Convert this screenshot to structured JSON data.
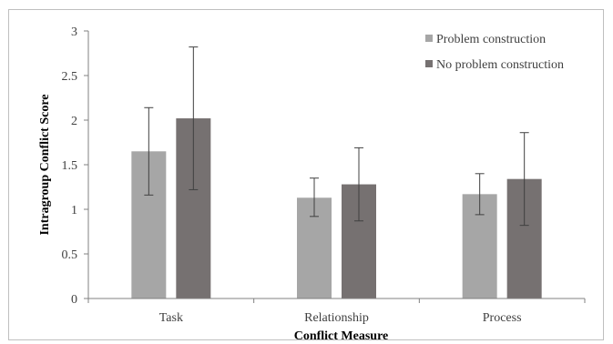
{
  "chart_data": {
    "type": "bar",
    "title": "",
    "xlabel": "Conflict Measure",
    "ylabel": "Intragroup Conflict Score",
    "ylim": [
      0,
      3
    ],
    "yticks": [
      "0",
      "0.5",
      "1",
      "1.5",
      "2",
      "2.5",
      "3"
    ],
    "ytick_values": [
      0,
      0.5,
      1,
      1.5,
      2,
      2.5,
      3
    ],
    "categories": [
      "Task",
      "Relationship",
      "Process"
    ],
    "grid": false,
    "legend_position": "top-right",
    "series": [
      {
        "name": "Problem construction",
        "color": "#a6a6a6",
        "values": [
          1.65,
          1.13,
          1.17
        ],
        "error_low": [
          1.16,
          0.92,
          0.94
        ],
        "error_high": [
          2.14,
          1.35,
          1.4
        ]
      },
      {
        "name": "No problem construction",
        "color": "#767171",
        "values": [
          2.02,
          1.28,
          1.34
        ],
        "error_low": [
          1.22,
          0.87,
          0.82
        ],
        "error_high": [
          2.82,
          1.69,
          1.86
        ]
      }
    ]
  }
}
